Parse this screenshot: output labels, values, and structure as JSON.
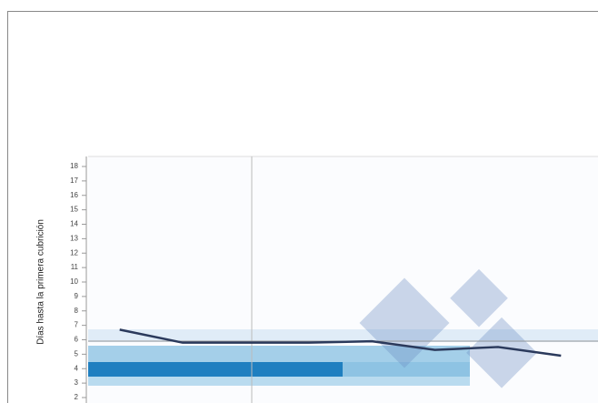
{
  "chart_data": {
    "type": "line",
    "y_label": "Días hasta la primera cubrición",
    "categories": [
      null,
      null,
      null,
      null,
      null,
      null,
      null,
      null
    ],
    "series": [
      {
        "name": null,
        "color": "#2b3a5c",
        "values": [
          6.7,
          5.8,
          5.8,
          5.8,
          5.9,
          5.3,
          5.5,
          4.9
        ]
      }
    ],
    "ylim": [
      2,
      18
    ],
    "yticks": [
      2,
      3,
      4,
      5,
      6,
      7,
      8,
      9,
      10,
      11,
      12,
      13,
      14,
      15,
      16,
      17,
      18
    ],
    "grid": false
  }
}
